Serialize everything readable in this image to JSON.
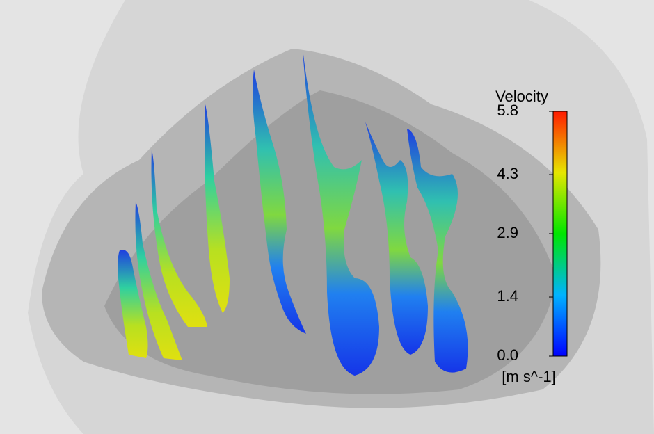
{
  "colorbar": {
    "title": "Velocity",
    "unit": "[m s^-1]",
    "ticks": [
      {
        "value": 0,
        "label": "0.0"
      },
      {
        "value": 1.4,
        "label": "1.4"
      },
      {
        "value": 2.9,
        "label": "2.9"
      },
      {
        "value": 4.3,
        "label": "4.3"
      },
      {
        "value": 5.8,
        "label": "5.8"
      }
    ]
  }
}
